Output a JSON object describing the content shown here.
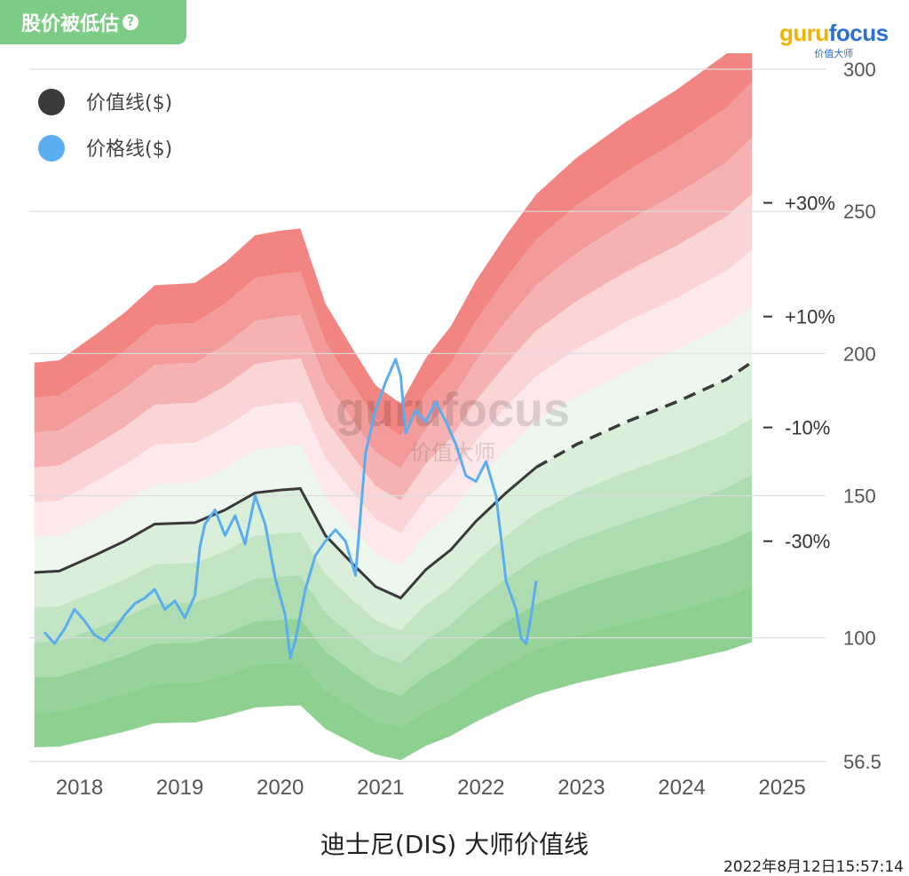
{
  "badge": {
    "label": "股价被低估",
    "help_glyph": "?"
  },
  "logo": {
    "part1": "guru",
    "part2": "focus",
    "subtitle": "价值大师",
    "color1": "#f0b400",
    "color2": "#2a6fd1"
  },
  "watermark": {
    "main": "gurufocus",
    "sub": "价值大师"
  },
  "chart_title": "迪士尼(DIS) 大师价值线",
  "timestamp": "2022年8月12日15:57:14",
  "chart_data": {
    "type": "area",
    "x_ticks": [
      "2018",
      "2019",
      "2020",
      "2021",
      "2022",
      "2023",
      "2024",
      "2025"
    ],
    "y_ticks": [
      300,
      250,
      200,
      150,
      100,
      56.5
    ],
    "ylim": [
      56.5,
      300
    ],
    "grid": true,
    "legend_position": "top-left",
    "legend": [
      {
        "name": "价值线($)",
        "color": "#3a3a3a"
      },
      {
        "name": "价格线($)",
        "color": "#5aaeef"
      }
    ],
    "band_labels": [
      "+30%",
      "+10%",
      "-10%",
      "-30%"
    ],
    "band_label_values": [
      253,
      213,
      174,
      134
    ],
    "band_multipliers": [
      1.6,
      1.5,
      1.4,
      1.3,
      1.2,
      1.1,
      1.0,
      0.9,
      0.8,
      0.7,
      0.6,
      0.5
    ],
    "band_colors": [
      "#f28482",
      "#f39a9a",
      "#f6b2b2",
      "#fbd4d6",
      "#fde9eb",
      "#eef7ee",
      "#daefda",
      "#c3e5c4",
      "#acdcaf",
      "#95d39a",
      "#8ed08f"
    ],
    "gf_value": {
      "x": [
        2017.6,
        2017.85,
        2018.2,
        2018.5,
        2018.8,
        2019.2,
        2019.5,
        2019.8,
        2020.05,
        2020.25,
        2020.5,
        2020.8,
        2021.0,
        2021.25,
        2021.5,
        2021.75,
        2022.0,
        2022.3,
        2022.6
      ],
      "y": [
        123,
        123.5,
        129,
        134,
        140,
        140.5,
        145,
        151,
        152,
        152.5,
        136,
        125,
        118,
        114,
        124,
        131,
        141,
        151,
        160
      ]
    },
    "gf_value_projected": {
      "x": [
        2022.6,
        2023.0,
        2023.5,
        2024.0,
        2024.5,
        2024.75
      ],
      "y": [
        160,
        168,
        176,
        183,
        191,
        197
      ]
    },
    "price": {
      "x": [
        2017.7,
        2017.8,
        2017.9,
        2018.0,
        2018.1,
        2018.2,
        2018.3,
        2018.4,
        2018.5,
        2018.6,
        2018.7,
        2018.8,
        2018.9,
        2019.0,
        2019.1,
        2019.2,
        2019.25,
        2019.3,
        2019.4,
        2019.5,
        2019.6,
        2019.7,
        2019.8,
        2019.9,
        2020.0,
        2020.1,
        2020.15,
        2020.2,
        2020.25,
        2020.3,
        2020.4,
        2020.5,
        2020.6,
        2020.7,
        2020.8,
        2020.9,
        2021.0,
        2021.1,
        2021.2,
        2021.25,
        2021.3,
        2021.4,
        2021.5,
        2021.6,
        2021.7,
        2021.8,
        2021.9,
        2022.0,
        2022.1,
        2022.2,
        2022.3,
        2022.4,
        2022.45,
        2022.5,
        2022.55,
        2022.6
      ],
      "y": [
        102,
        98,
        103,
        110,
        106,
        101,
        99,
        103,
        108,
        112,
        114,
        117,
        110,
        113,
        107,
        115,
        132,
        140,
        145,
        136,
        143,
        133,
        150,
        140,
        121,
        108,
        93,
        99,
        108,
        117,
        129,
        134,
        138,
        134,
        122,
        165,
        180,
        190,
        198,
        192,
        172,
        180,
        176,
        183,
        176,
        168,
        157,
        155,
        162,
        150,
        120,
        110,
        100,
        98,
        108,
        120
      ]
    }
  }
}
